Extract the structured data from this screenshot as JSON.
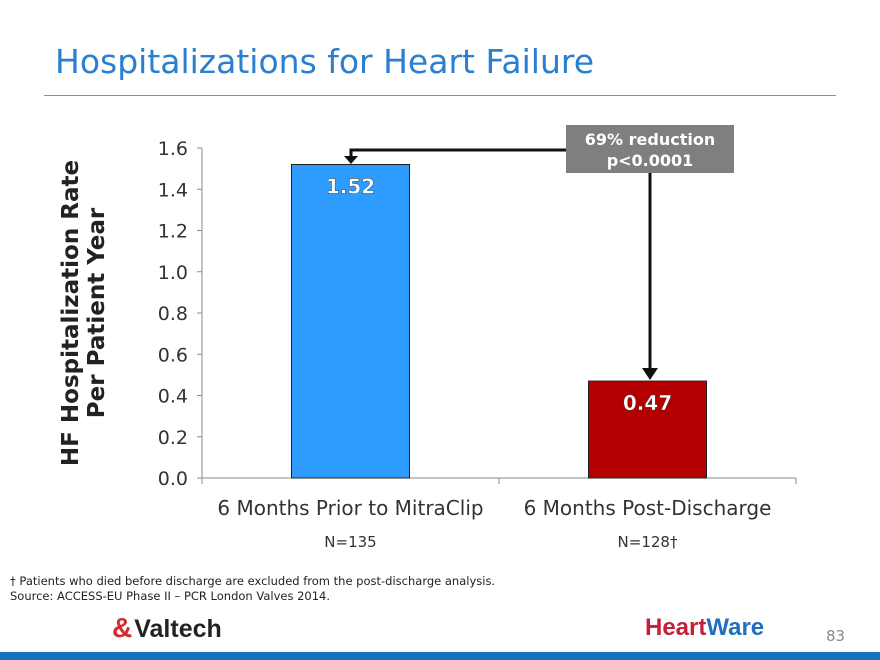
{
  "title": "Hospitalizations for Heart Failure",
  "chart_data": {
    "type": "bar",
    "ylabel_line1": "HF Hospitalization Rate",
    "ylabel_line2": "Per Patient Year",
    "ylim": [
      0,
      1.6
    ],
    "yticks": [
      "0.0",
      "0.2",
      "0.4",
      "0.6",
      "0.8",
      "1.0",
      "1.2",
      "1.4",
      "1.6"
    ],
    "categories": [
      "6 Months Prior to MitraClip",
      "6 Months Post-Discharge"
    ],
    "sample_sizes": [
      "N=135",
      "N=128†"
    ],
    "values": [
      1.52,
      0.47
    ],
    "value_labels": [
      "1.52",
      "0.47"
    ],
    "colors": [
      "#2e9bff",
      "#b40000"
    ],
    "annotation": {
      "line1": "69% reduction",
      "line2": "p<0.0001"
    }
  },
  "footnote": "† Patients who died before discharge are excluded from the post-discharge analysis.",
  "source": "Source: ACCESS-EU Phase II – PCR London Valves 2014.",
  "logos": {
    "left": "Valtech",
    "right_a": "Heart",
    "right_b": "Ware"
  },
  "page_number": "83"
}
